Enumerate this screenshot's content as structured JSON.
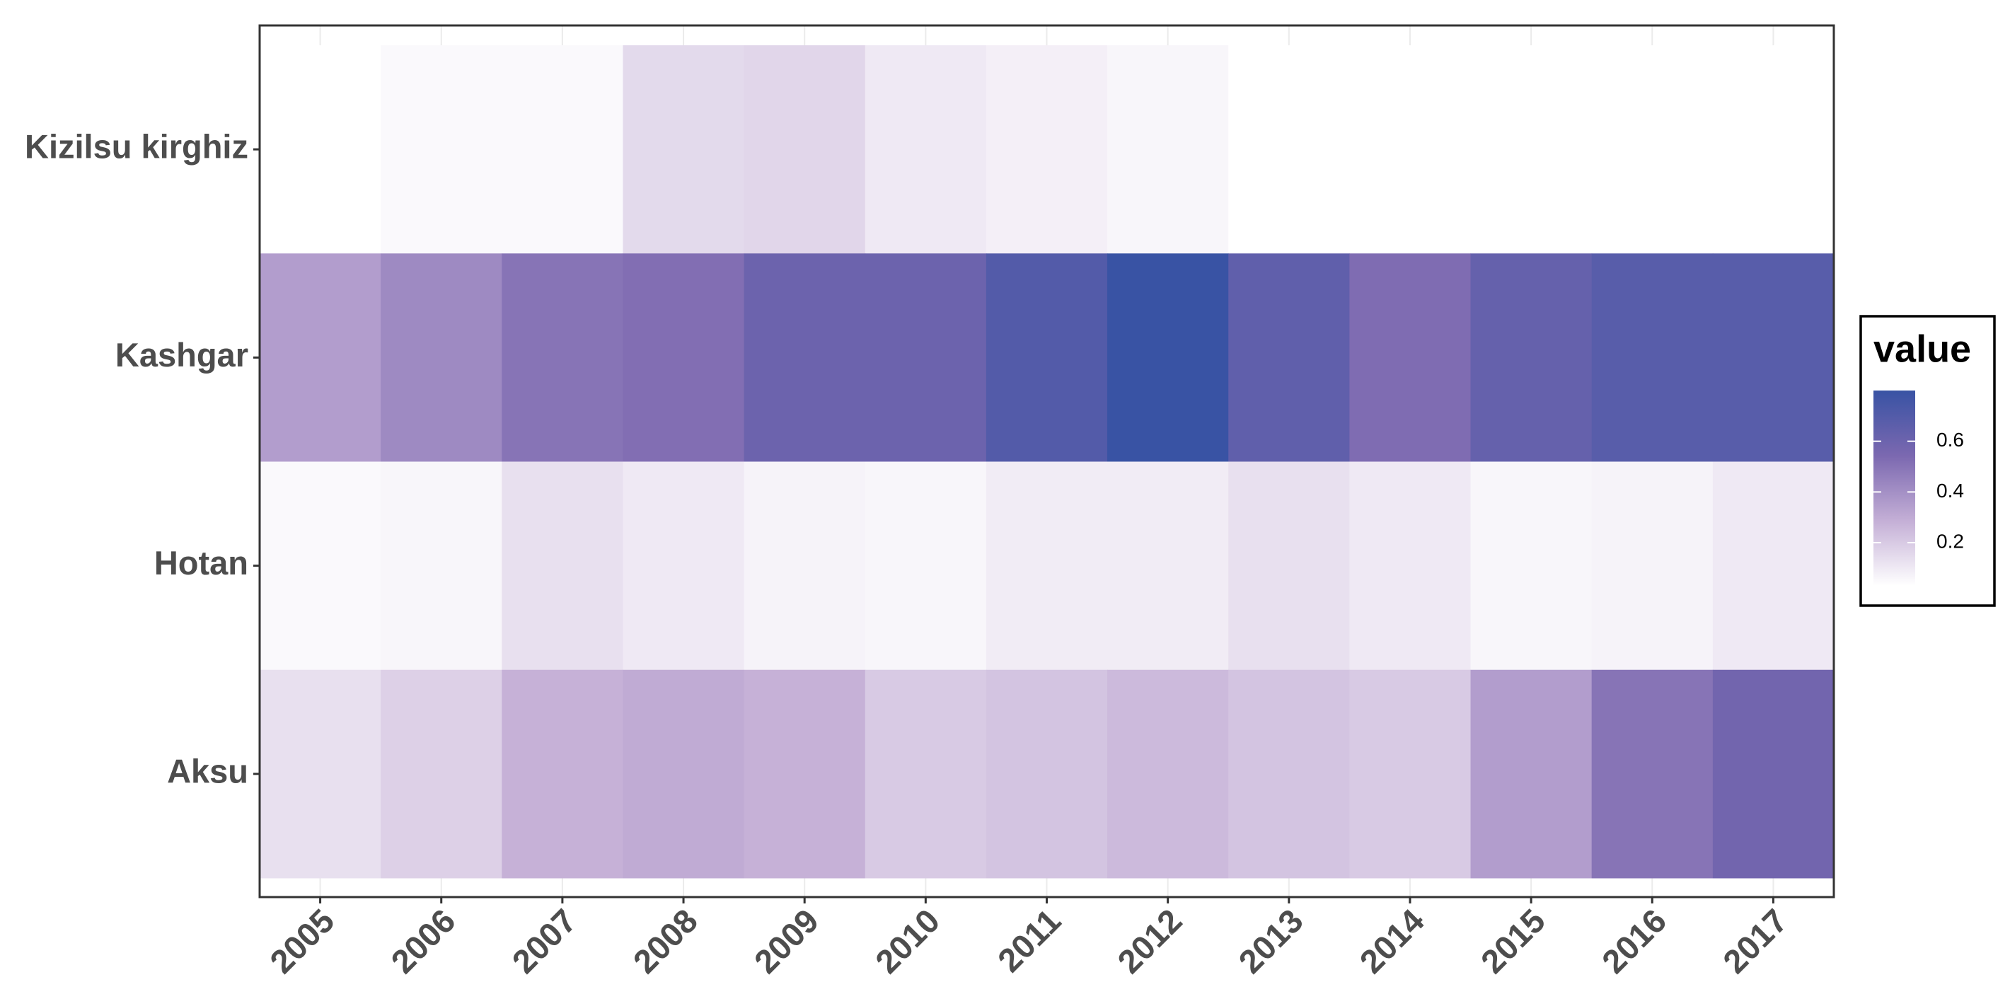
{
  "chart_data": {
    "type": "heatmap",
    "x": [
      "2005",
      "2006",
      "2007",
      "2008",
      "2009",
      "2010",
      "2011",
      "2012",
      "2013",
      "2014",
      "2015",
      "2016",
      "2017"
    ],
    "y": [
      "Kizilsu kirghiz",
      "Kashgar",
      "Hotan",
      "Aksu"
    ],
    "values": [
      [
        0.03,
        0.05,
        0.05,
        0.15,
        0.16,
        0.1,
        0.08,
        0.06,
        0.03,
        0.03,
        0.03,
        0.03,
        0.03
      ],
      [
        0.35,
        0.42,
        0.5,
        0.52,
        0.6,
        0.6,
        0.7,
        0.8,
        0.65,
        0.53,
        0.63,
        0.68,
        0.68
      ],
      [
        0.05,
        0.06,
        0.13,
        0.1,
        0.07,
        0.06,
        0.09,
        0.09,
        0.13,
        0.1,
        0.06,
        0.07,
        0.1
      ],
      [
        0.13,
        0.18,
        0.28,
        0.3,
        0.28,
        0.2,
        0.22,
        0.25,
        0.22,
        0.2,
        0.35,
        0.5,
        0.58
      ]
    ],
    "legend_title": "value",
    "clim": [
      0.03,
      0.8
    ],
    "cticks": [
      0.2,
      0.4,
      0.6
    ],
    "colors": [
      "#ffffff",
      "#c4afd6",
      "#7b68b0",
      "#3953a4"
    ],
    "grid": true
  }
}
